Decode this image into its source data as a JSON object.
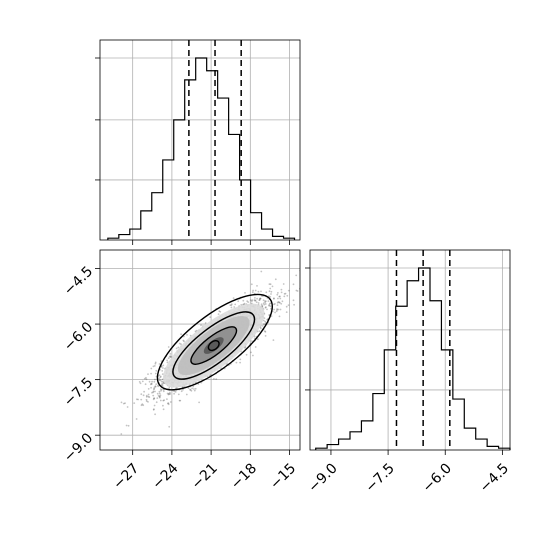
{
  "chart_data": [
    {
      "type": "histogram",
      "panel": "top-left",
      "xlim": [
        -29.5,
        -14.2
      ],
      "x_ticks": [
        -27,
        -24,
        -21,
        -18,
        -15
      ],
      "show_tick_labels": false,
      "grid": true,
      "bin_edges": [
        -28.9,
        -28.06,
        -27.22,
        -26.38,
        -25.54,
        -24.7,
        -23.86,
        -23.02,
        -22.18,
        -21.34,
        -20.5,
        -19.66,
        -18.82,
        -17.98,
        -17.14,
        -16.3,
        -15.46,
        -14.62
      ],
      "counts": [
        0.01,
        0.03,
        0.06,
        0.16,
        0.26,
        0.44,
        0.66,
        0.88,
        1.0,
        0.93,
        0.78,
        0.58,
        0.33,
        0.15,
        0.06,
        0.02,
        0.01
      ],
      "quantiles": [
        -22.7,
        -20.7,
        -18.7
      ]
    },
    {
      "type": "scatter",
      "panel": "bottom-left",
      "xlim": [
        -29.5,
        -14.2
      ],
      "ylim": [
        -9.4,
        -4.0
      ],
      "x_ticks": [
        -27,
        -24,
        -21,
        -18,
        -15
      ],
      "x_tick_labels": [
        "−27",
        "−24",
        "−21",
        "−18",
        "−15"
      ],
      "y_ticks": [
        -9.0,
        -7.5,
        -6.0,
        -4.5
      ],
      "y_tick_labels": [
        "−9.0",
        "−7.5",
        "−6.0",
        "−4.5"
      ],
      "grid": true,
      "density_center": [
        -20.8,
        -6.58
      ],
      "contours": [
        {
          "center": [
            -20.8,
            -6.6
          ],
          "half_width": [
            0.6,
            0.15
          ]
        },
        {
          "center": [
            -20.6,
            -6.6
          ],
          "half_width": [
            2.6,
            0.55
          ]
        },
        {
          "center": [
            -20.5,
            -6.55
          ],
          "half_width": [
            4.0,
            0.9
          ]
        },
        {
          "center": [
            -20.2,
            -6.4
          ],
          "half_width": [
            5.2,
            1.3
          ]
        }
      ]
    },
    {
      "type": "histogram",
      "panel": "bottom-right",
      "xlim": [
        -9.55,
        -4.3
      ],
      "x_ticks": [
        -9.0,
        -7.5,
        -6.0,
        -4.5
      ],
      "x_tick_labels": [
        "−9.0",
        "−7.5",
        "−6.0",
        "−4.5"
      ],
      "grid": true,
      "bin_edges": [
        -9.4,
        -9.1,
        -8.8,
        -8.5,
        -8.2,
        -7.9,
        -7.6,
        -7.3,
        -7.0,
        -6.7,
        -6.4,
        -6.1,
        -5.8,
        -5.5,
        -5.2,
        -4.9,
        -4.6,
        -4.3
      ],
      "counts": [
        0.01,
        0.03,
        0.06,
        0.1,
        0.16,
        0.31,
        0.55,
        0.79,
        0.93,
        1.0,
        0.82,
        0.55,
        0.28,
        0.12,
        0.06,
        0.02,
        0.01
      ],
      "quantiles": [
        -7.28,
        -6.58,
        -5.88
      ]
    }
  ]
}
